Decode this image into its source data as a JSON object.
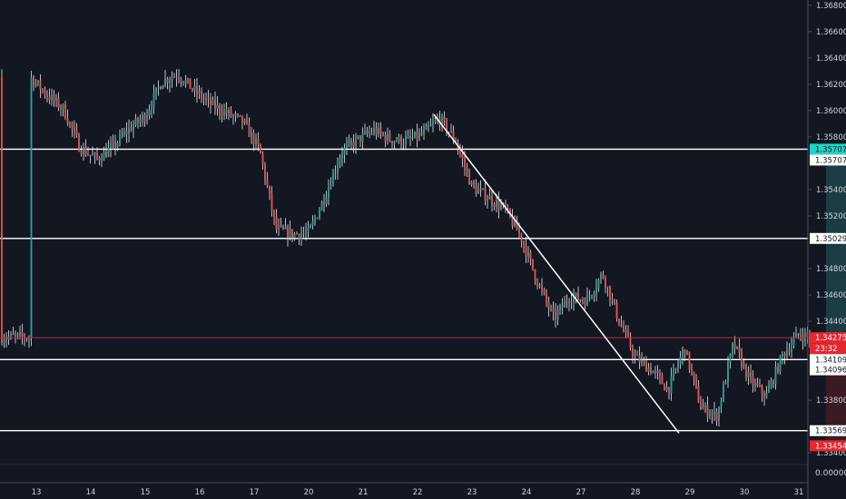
{
  "chart_data": {
    "type": "candlestick",
    "title": "",
    "xlabel": "",
    "ylabel": "",
    "ylim": [
      1.3336,
      1.3684
    ],
    "grid": false,
    "x_ticks": [
      "13",
      "14",
      "15",
      "16",
      "17",
      "20",
      "21",
      "22",
      "23",
      "24",
      "27",
      "28",
      "29",
      "30",
      "31"
    ],
    "y_ticks": [
      "1.36800",
      "1.36600",
      "1.36400",
      "1.36200",
      "1.36000",
      "1.35800",
      "1.35400",
      "1.35200",
      "1.34800",
      "1.34600",
      "1.34400",
      "1.33800",
      "1.33400"
    ],
    "y_ticks_values": [
      1.368,
      1.366,
      1.364,
      1.362,
      1.36,
      1.358,
      1.354,
      1.352,
      1.348,
      1.346,
      1.344,
      1.338,
      1.334
    ],
    "horizontal_levels": [
      {
        "price": 1.35707,
        "label": "1.35707"
      },
      {
        "price": 1.35029,
        "label": "1.35029"
      },
      {
        "price": 1.34109,
        "label": "1.34109"
      },
      {
        "price": 1.33569,
        "label": "1.33569"
      }
    ],
    "current_price": {
      "price": 1.34275,
      "label": "1.34275",
      "countdown": "23:32"
    },
    "position": {
      "entry": 1.341,
      "target": 1.35707,
      "stop": 1.33454,
      "target_label": "1.35707",
      "entry_label": "1.34096",
      "stop_label": "1.33454"
    },
    "trendline": {
      "from": [
        20.3,
        1.3597
      ],
      "to": [
        24.8,
        1.3355
      ]
    },
    "indicator_pane": {
      "label": "0.00000"
    },
    "close_path": [
      [
        12.9,
        1.3625
      ],
      [
        13.2,
        1.3612
      ],
      [
        13.5,
        1.3601
      ],
      [
        13.8,
        1.3572
      ],
      [
        14.1,
        1.3563
      ],
      [
        14.4,
        1.3572
      ],
      [
        14.7,
        1.3586
      ],
      [
        15.0,
        1.3596
      ],
      [
        15.3,
        1.3622
      ],
      [
        15.6,
        1.3628
      ],
      [
        15.9,
        1.3615
      ],
      [
        16.2,
        1.3605
      ],
      [
        16.5,
        1.3598
      ],
      [
        16.8,
        1.3591
      ],
      [
        17.1,
        1.357
      ],
      [
        17.4,
        1.351
      ],
      [
        17.7,
        1.3506
      ],
      [
        18.0,
        1.3507
      ],
      [
        18.3,
        1.3535
      ],
      [
        18.6,
        1.3568
      ],
      [
        18.9,
        1.3578
      ],
      [
        19.2,
        1.3585
      ],
      [
        19.5,
        1.3578
      ],
      [
        19.8,
        1.3577
      ],
      [
        20.1,
        1.3582
      ],
      [
        20.4,
        1.3594
      ],
      [
        20.7,
        1.3577
      ],
      [
        21.0,
        1.3542
      ],
      [
        21.3,
        1.3534
      ],
      [
        21.6,
        1.3525
      ],
      [
        21.9,
        1.3504
      ],
      [
        22.2,
        1.347
      ],
      [
        22.5,
        1.3442
      ],
      [
        22.8,
        1.3459
      ],
      [
        23.1,
        1.3456
      ],
      [
        23.4,
        1.3476
      ],
      [
        23.7,
        1.344
      ],
      [
        24.0,
        1.3412
      ],
      [
        24.3,
        1.3403
      ],
      [
        24.6,
        1.3388
      ],
      [
        24.9,
        1.342
      ],
      [
        25.2,
        1.3375
      ],
      [
        25.5,
        1.3368
      ],
      [
        25.8,
        1.3423
      ],
      [
        26.1,
        1.3395
      ],
      [
        26.4,
        1.3383
      ],
      [
        26.7,
        1.3414
      ],
      [
        27.0,
        1.343
      ],
      [
        27.2,
        1.3428
      ]
    ]
  }
}
